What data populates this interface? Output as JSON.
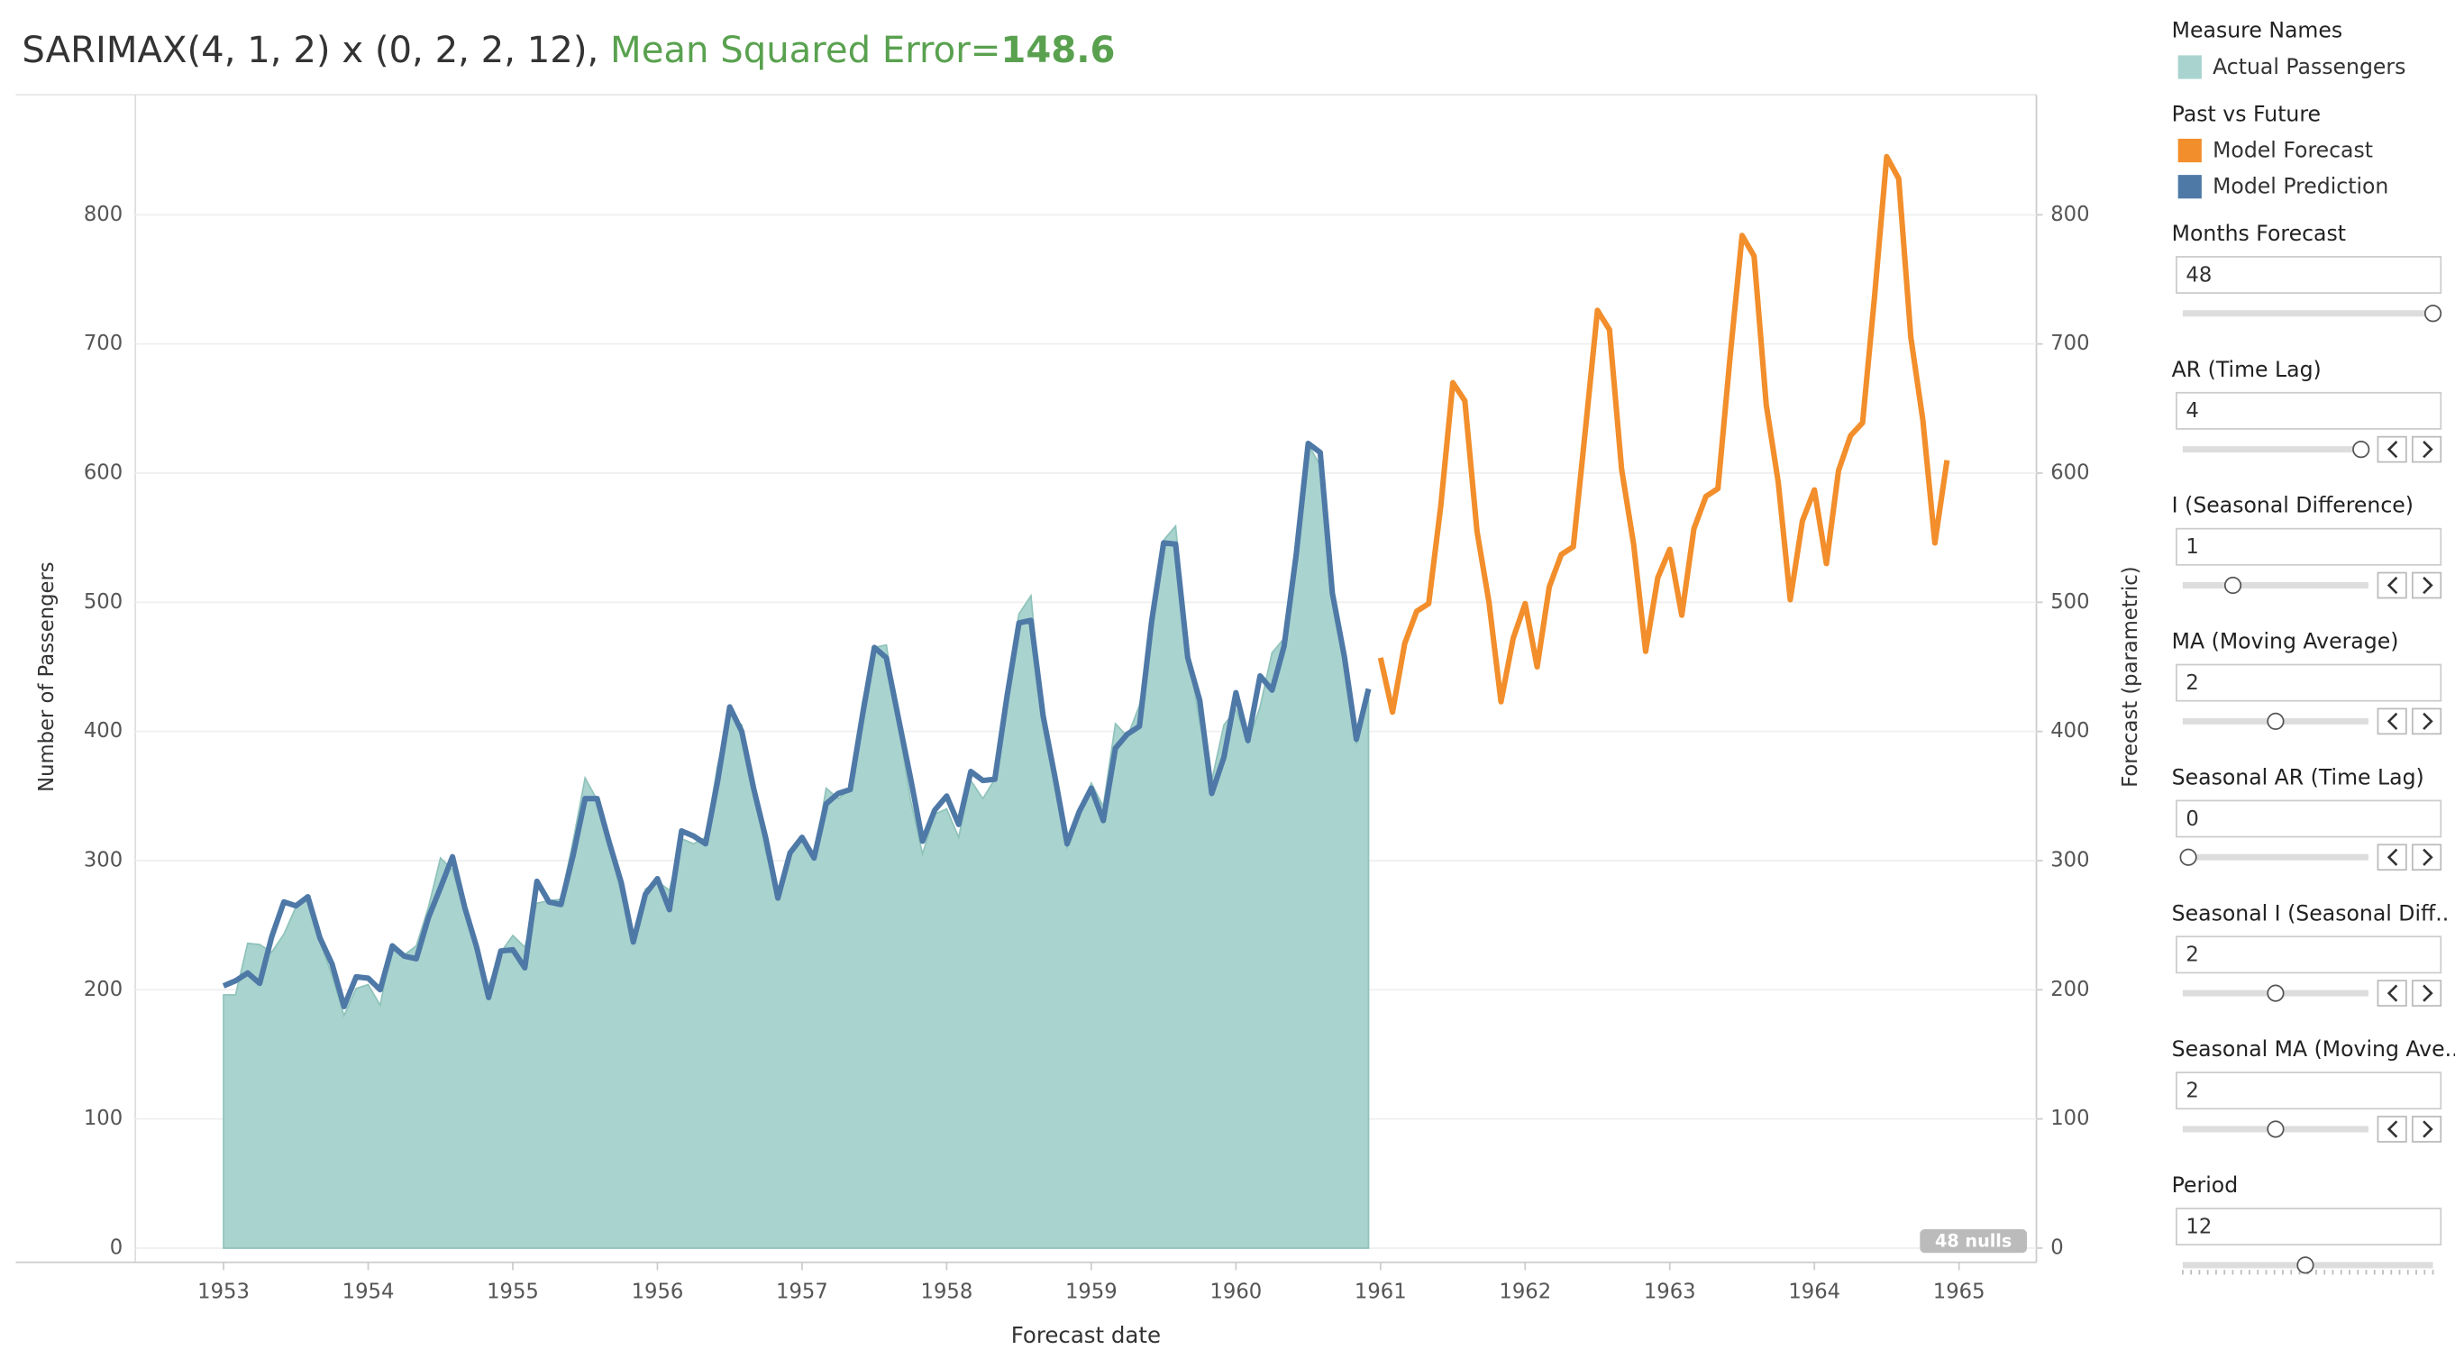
{
  "chart_data": {
    "type": "line",
    "title": "SARIMAX(4, 1, 2) x (0, 2, 2, 12),",
    "metric_label": "Mean Squared Error=",
    "metric_value": 148.6,
    "x_label": "Forecast date",
    "y_label": "Number of Passengers",
    "y2_label": "Forecast (parametric)",
    "null_indicator": "48 nulls",
    "legend_titles": [
      "Measure Names",
      "Past vs Future"
    ],
    "xlim": [
      1952.39,
      1965.535
    ],
    "xticks": [
      1953,
      1954,
      1955,
      1956,
      1957,
      1958,
      1959,
      1960,
      1961,
      1962,
      1963,
      1964,
      1965
    ],
    "ylim": [
      -11,
      893
    ],
    "yticks": [
      0,
      100,
      200,
      300,
      400,
      500,
      600,
      700,
      800
    ],
    "y2lim": [
      -11,
      893
    ],
    "y2ticks": [
      0,
      100,
      200,
      300,
      400,
      500,
      600,
      700,
      800
    ],
    "grid": true,
    "x": [
      1953,
      1953.083,
      1953.167,
      1953.25,
      1953.333,
      1953.417,
      1953.5,
      1953.583,
      1953.667,
      1953.75,
      1953.833,
      1953.917,
      1954,
      1954.083,
      1954.167,
      1954.25,
      1954.333,
      1954.417,
      1954.5,
      1954.583,
      1954.667,
      1954.75,
      1954.833,
      1954.917,
      1955,
      1955.083,
      1955.167,
      1955.25,
      1955.333,
      1955.417,
      1955.5,
      1955.583,
      1955.667,
      1955.75,
      1955.833,
      1955.917,
      1956,
      1956.083,
      1956.167,
      1956.25,
      1956.333,
      1956.417,
      1956.5,
      1956.583,
      1956.667,
      1956.75,
      1956.833,
      1956.917,
      1957,
      1957.083,
      1957.167,
      1957.25,
      1957.333,
      1957.417,
      1957.5,
      1957.583,
      1957.667,
      1957.75,
      1957.833,
      1957.917,
      1958,
      1958.083,
      1958.167,
      1958.25,
      1958.333,
      1958.417,
      1958.5,
      1958.583,
      1958.667,
      1958.75,
      1958.833,
      1958.917,
      1959,
      1959.083,
      1959.167,
      1959.25,
      1959.333,
      1959.417,
      1959.5,
      1959.583,
      1959.667,
      1959.75,
      1959.833,
      1959.917,
      1960,
      1960.083,
      1960.167,
      1960.25,
      1960.333,
      1960.417,
      1960.5,
      1960.583,
      1960.667,
      1960.75,
      1960.833,
      1960.917,
      1961,
      1961.083,
      1961.167,
      1961.25,
      1961.333,
      1961.417,
      1961.5,
      1961.583,
      1961.667,
      1961.75,
      1961.833,
      1961.917,
      1962,
      1962.083,
      1962.167,
      1962.25,
      1962.333,
      1962.417,
      1962.5,
      1962.583,
      1962.667,
      1962.75,
      1962.833,
      1962.917,
      1963,
      1963.083,
      1963.167,
      1963.25,
      1963.333,
      1963.417,
      1963.5,
      1963.583,
      1963.667,
      1963.75,
      1963.833,
      1963.917,
      1964,
      1964.083,
      1964.167,
      1964.25,
      1964.333,
      1964.417,
      1964.5,
      1964.583,
      1964.667,
      1964.75,
      1964.833,
      1964.917
    ],
    "series": [
      {
        "name": "Actual Passengers",
        "color": "#a9d3ce",
        "values": [
          196,
          196,
          236,
          235,
          229,
          243,
          264,
          272,
          237,
          211,
          180,
          201,
          204,
          188,
          235,
          227,
          234,
          264,
          302,
          293,
          259,
          229,
          203,
          229,
          242,
          233,
          267,
          269,
          270,
          315,
          364,
          347,
          312,
          274,
          237,
          278,
          284,
          277,
          317,
          313,
          318,
          374,
          413,
          405,
          355,
          306,
          271,
          306,
          315,
          301,
          356,
          348,
          355,
          422,
          465,
          467,
          404,
          347,
          305,
          336,
          340,
          318,
          362,
          348,
          363,
          435,
          491,
          505,
          404,
          359,
          310,
          337,
          360,
          342,
          406,
          396,
          420,
          472,
          548,
          559,
          463,
          407,
          362,
          405,
          417,
          391,
          419,
          461,
          472,
          535,
          622,
          606,
          508,
          461,
          390,
          432,
          null,
          null,
          null,
          null,
          null,
          null,
          null,
          null,
          null,
          null,
          null,
          null,
          null,
          null,
          null,
          null,
          null,
          null,
          null,
          null,
          null,
          null,
          null,
          null,
          null,
          null,
          null,
          null,
          null,
          null,
          null,
          null,
          null,
          null,
          null,
          null,
          null,
          null,
          null,
          null,
          null,
          null,
          null,
          null,
          null,
          null,
          null,
          null
        ]
      },
      {
        "name": "Model Forecast",
        "color": "#f28e2b",
        "axis": "y2",
        "values": [
          null,
          null,
          null,
          null,
          null,
          null,
          null,
          null,
          null,
          null,
          null,
          null,
          null,
          null,
          null,
          null,
          null,
          null,
          null,
          null,
          null,
          null,
          null,
          null,
          null,
          null,
          null,
          null,
          null,
          null,
          null,
          null,
          null,
          null,
          null,
          null,
          null,
          null,
          null,
          null,
          null,
          null,
          null,
          null,
          null,
          null,
          null,
          null,
          null,
          null,
          null,
          null,
          null,
          null,
          null,
          null,
          null,
          null,
          null,
          null,
          null,
          null,
          null,
          null,
          null,
          null,
          null,
          null,
          null,
          null,
          null,
          null,
          null,
          null,
          null,
          null,
          null,
          null,
          null,
          null,
          null,
          null,
          null,
          null,
          null,
          null,
          null,
          null,
          null,
          null,
          null,
          null,
          null,
          null,
          null,
          null,
          457,
          415,
          468,
          493,
          499,
          575,
          670,
          656,
          555,
          500,
          423,
          472,
          499,
          450,
          512,
          537,
          543,
          634,
          726,
          711,
          603,
          545,
          462,
          519,
          541,
          490,
          557,
          582,
          588,
          690,
          784,
          768,
          653,
          593,
          502,
          563,
          587,
          530,
          602,
          629,
          639,
          738,
          845,
          828,
          705,
          641,
          546,
          610
        ]
      },
      {
        "name": "Model Prediction",
        "color": "#4e79a7",
        "values": [
          203,
          207,
          213,
          205,
          241,
          268,
          265,
          272,
          240,
          220,
          187,
          210,
          209,
          200,
          234,
          226,
          224,
          256,
          279,
          303,
          264,
          233,
          194,
          230,
          231,
          217,
          284,
          268,
          266,
          304,
          348,
          348,
          314,
          283,
          237,
          274,
          286,
          262,
          323,
          319,
          313,
          362,
          419,
          400,
          355,
          317,
          271,
          306,
          318,
          302,
          344,
          352,
          355,
          412,
          465,
          457,
          410,
          364,
          315,
          339,
          350,
          328,
          369,
          362,
          363,
          427,
          484,
          486,
          412,
          364,
          313,
          338,
          356,
          331,
          387,
          398,
          404,
          485,
          546,
          545,
          457,
          424,
          352,
          380,
          430,
          393,
          443,
          432,
          466,
          537,
          623,
          616,
          507,
          458,
          394,
          433,
          null,
          null,
          null,
          null,
          null,
          null,
          null,
          null,
          null,
          null,
          null,
          null,
          null,
          null,
          null,
          null,
          null,
          null,
          null,
          null,
          null,
          null,
          null,
          null,
          null,
          null,
          null,
          null,
          null,
          null,
          null,
          null,
          null,
          null,
          null,
          null,
          null,
          null,
          null,
          null,
          null,
          null,
          null,
          null,
          null,
          null,
          null,
          null
        ]
      }
    ]
  },
  "controls": [
    {
      "label": "Months Forecast",
      "value": 48
    },
    {
      "label": "AR (Time Lag)",
      "value": 4
    },
    {
      "label": "I (Seasonal Difference)",
      "value": 1
    },
    {
      "label": "MA (Moving Average)",
      "value": 2
    },
    {
      "label": "Seasonal AR (Time Lag)",
      "value": 0
    },
    {
      "label": "Seasonal I (Seasonal Diff..",
      "value": 2
    },
    {
      "label": "Seasonal MA (Moving Ave..",
      "value": 2
    },
    {
      "label": "Period",
      "value": 12
    }
  ]
}
